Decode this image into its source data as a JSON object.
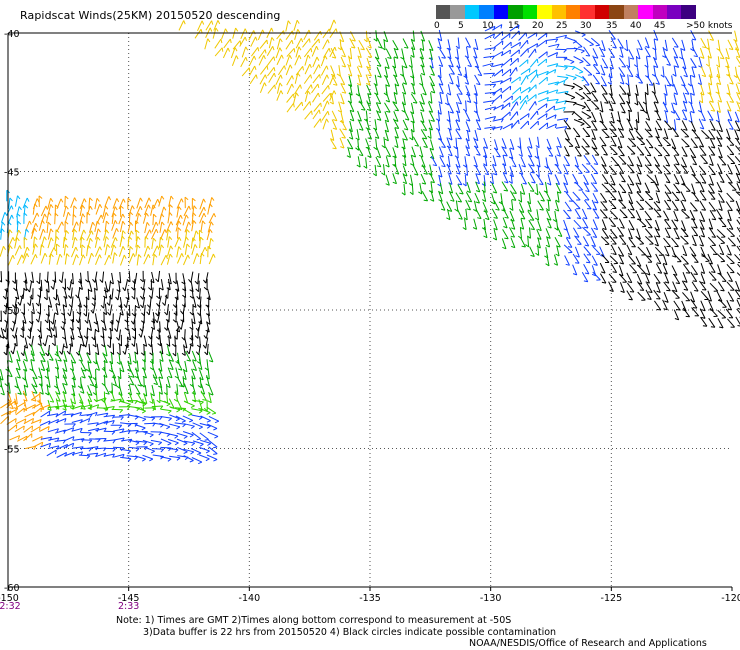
{
  "title": "Rapidscat Winds(25KM) 20150520 descending",
  "legend": {
    "colors": [
      "#555555",
      "#999999",
      "#00c8ff",
      "#0080ff",
      "#0000ff",
      "#00a000",
      "#00e000",
      "#ffff00",
      "#ffc000",
      "#ff8000",
      "#ff3030",
      "#d00000",
      "#8b4513",
      "#c08060",
      "#ff00ff",
      "#c000c0",
      "#7a00c0",
      "#3c0080"
    ],
    "labels": [
      "0",
      "5",
      "10",
      "15",
      "20",
      "25",
      "30",
      "35",
      "40",
      "45",
      ">50 knots"
    ]
  },
  "axes": {
    "lat_labels": [
      "-40",
      "-45",
      "-50",
      "-55",
      "-60"
    ],
    "lon_labels": [
      "-150",
      "-145",
      "-140",
      "-135",
      "-130",
      "-125",
      "-120"
    ]
  },
  "time_labels": [
    "2:32",
    "2:33"
  ],
  "time_label_color": "#800080",
  "notes": {
    "line1": "Note: 1) Times are GMT 2)Times along bottom correspond to measurement at -50S",
    "line2": "3)Data buffer is 22 hrs from 20150520 4) Black circles indicate possible contamination",
    "line3": "NOAA/NESDIS/Office of Research and Applications"
  }
}
